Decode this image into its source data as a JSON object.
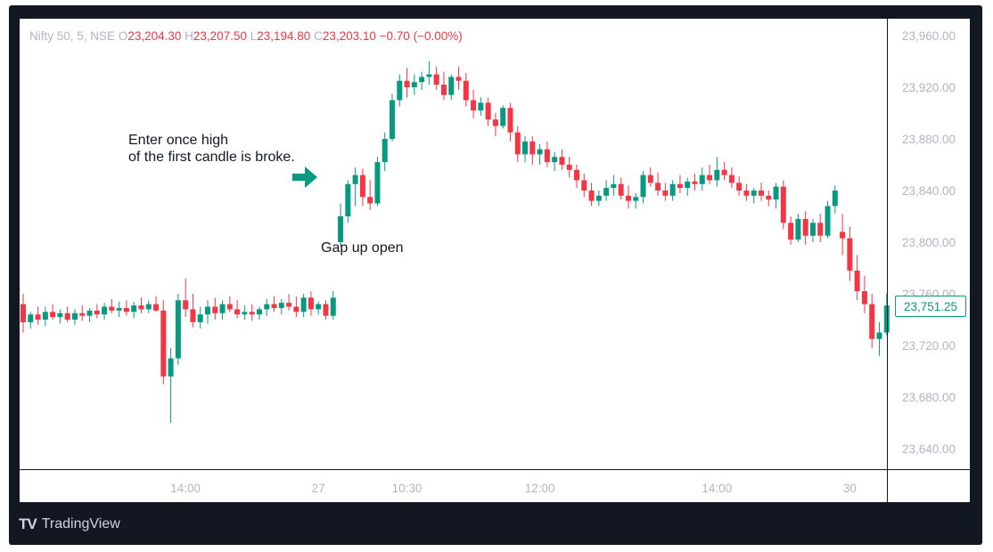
{
  "legend": {
    "symbol": "Nifty 50, 5, NSE",
    "open_label": "O",
    "open": "23,204.30",
    "high_label": "H",
    "high": "23,207.50",
    "low_label": "L",
    "low": "23,194.80",
    "close_label": "C",
    "close": "23,203.10",
    "change": "−0.70 (−0.00%)"
  },
  "annotations": {
    "entry_note_line1": "Enter once high",
    "entry_note_line2": "of the first candle is broke.",
    "gap_note": "Gap up open"
  },
  "last_price": "23,751.25",
  "watermark": "TradingView",
  "colors": {
    "up": "#089981",
    "down": "#f23645",
    "arrow": "#089981"
  },
  "chart_data": {
    "type": "candlestick",
    "y_ticks": [
      23640,
      23680,
      23720,
      23760,
      23800,
      23840,
      23880,
      23920,
      23960
    ],
    "y_tick_labels": [
      "23,640.00",
      "23,680.00",
      "23,720.00",
      "23,760.00",
      "23,800.00",
      "23,840.00",
      "23,880.00",
      "23,920.00",
      "23,960.00"
    ],
    "ylim": [
      23625,
      23975
    ],
    "x_tick_labels": [
      {
        "index": 22,
        "label": "14:00"
      },
      {
        "index": 40,
        "label": "27"
      },
      {
        "index": 52,
        "label": "10:30"
      },
      {
        "index": 70,
        "label": "12:00"
      },
      {
        "index": 94,
        "label": "14:00"
      },
      {
        "index": 112,
        "label": "30"
      }
    ],
    "grid": false,
    "candles": [
      [
        23752,
        23760,
        23730,
        23738
      ],
      [
        23738,
        23746,
        23733,
        23744
      ],
      [
        23744,
        23750,
        23736,
        23740
      ],
      [
        23740,
        23750,
        23735,
        23746
      ],
      [
        23746,
        23752,
        23740,
        23742
      ],
      [
        23742,
        23748,
        23737,
        23745
      ],
      [
        23745,
        23750,
        23738,
        23740
      ],
      [
        23740,
        23748,
        23736,
        23745
      ],
      [
        23745,
        23751,
        23739,
        23743
      ],
      [
        23743,
        23749,
        23738,
        23747
      ],
      [
        23747,
        23752,
        23741,
        23744
      ],
      [
        23744,
        23753,
        23740,
        23750
      ],
      [
        23750,
        23756,
        23745,
        23747
      ],
      [
        23747,
        23754,
        23742,
        23749
      ],
      [
        23749,
        23755,
        23743,
        23746
      ],
      [
        23746,
        23754,
        23741,
        23751
      ],
      [
        23751,
        23757,
        23745,
        23748
      ],
      [
        23748,
        23755,
        23745,
        23752
      ],
      [
        23752,
        23758,
        23746,
        23747
      ],
      [
        23747,
        23755,
        23690,
        23696
      ],
      [
        23696,
        23718,
        23660,
        23710
      ],
      [
        23710,
        23760,
        23705,
        23755
      ],
      [
        23755,
        23772,
        23742,
        23748
      ],
      [
        23748,
        23760,
        23734,
        23738
      ],
      [
        23738,
        23750,
        23733,
        23744
      ],
      [
        23744,
        23755,
        23737,
        23750
      ],
      [
        23750,
        23757,
        23740,
        23745
      ],
      [
        23745,
        23755,
        23740,
        23752
      ],
      [
        23752,
        23758,
        23746,
        23748
      ],
      [
        23748,
        23755,
        23741,
        23744
      ],
      [
        23744,
        23751,
        23740,
        23746
      ],
      [
        23746,
        23752,
        23739,
        23744
      ],
      [
        23744,
        23750,
        23740,
        23748
      ],
      [
        23748,
        23756,
        23743,
        23752
      ],
      [
        23752,
        23758,
        23746,
        23749
      ],
      [
        23749,
        23756,
        23744,
        23753
      ],
      [
        23753,
        23760,
        23747,
        23750
      ],
      [
        23750,
        23758,
        23742,
        23746
      ],
      [
        23746,
        23760,
        23742,
        23757
      ],
      [
        23757,
        23762,
        23743,
        23748
      ],
      [
        23748,
        23754,
        23744,
        23752
      ],
      [
        23752,
        23755,
        23740,
        23743
      ],
      [
        23743,
        23762,
        23740,
        23757
      ],
      [
        23800,
        23830,
        23797,
        23820
      ],
      [
        23820,
        23848,
        23815,
        23845
      ],
      [
        23845,
        23858,
        23828,
        23852
      ],
      [
        23852,
        23857,
        23828,
        23835
      ],
      [
        23835,
        23848,
        23825,
        23830
      ],
      [
        23830,
        23866,
        23828,
        23862
      ],
      [
        23862,
        23885,
        23855,
        23880
      ],
      [
        23880,
        23915,
        23878,
        23910
      ],
      [
        23910,
        23930,
        23905,
        23925
      ],
      [
        23925,
        23935,
        23912,
        23920
      ],
      [
        23920,
        23930,
        23914,
        23924
      ],
      [
        23924,
        23932,
        23918,
        23928
      ],
      [
        23928,
        23940,
        23922,
        23930
      ],
      [
        23930,
        23936,
        23918,
        23922
      ],
      [
        23922,
        23932,
        23910,
        23914
      ],
      [
        23914,
        23930,
        23910,
        23928
      ],
      [
        23928,
        23936,
        23918,
        23925
      ],
      [
        23925,
        23931,
        23905,
        23910
      ],
      [
        23910,
        23918,
        23896,
        23902
      ],
      [
        23902,
        23912,
        23898,
        23908
      ],
      [
        23908,
        23912,
        23890,
        23895
      ],
      [
        23895,
        23900,
        23882,
        23890
      ],
      [
        23890,
        23906,
        23888,
        23904
      ],
      [
        23904,
        23908,
        23878,
        23885
      ],
      [
        23885,
        23890,
        23862,
        23868
      ],
      [
        23868,
        23882,
        23862,
        23878
      ],
      [
        23878,
        23882,
        23860,
        23868
      ],
      [
        23868,
        23876,
        23860,
        23872
      ],
      [
        23872,
        23878,
        23858,
        23862
      ],
      [
        23862,
        23870,
        23855,
        23866
      ],
      [
        23866,
        23872,
        23856,
        23860
      ],
      [
        23860,
        23866,
        23850,
        23856
      ],
      [
        23856,
        23860,
        23842,
        23848
      ],
      [
        23848,
        23853,
        23835,
        23840
      ],
      [
        23840,
        23846,
        23828,
        23832
      ],
      [
        23832,
        23840,
        23828,
        23836
      ],
      [
        23836,
        23848,
        23832,
        23842
      ],
      [
        23842,
        23852,
        23836,
        23845
      ],
      [
        23845,
        23850,
        23833,
        23836
      ],
      [
        23836,
        23844,
        23826,
        23832
      ],
      [
        23832,
        23838,
        23826,
        23835
      ],
      [
        23835,
        23855,
        23830,
        23852
      ],
      [
        23852,
        23858,
        23843,
        23846
      ],
      [
        23846,
        23854,
        23836,
        23840
      ],
      [
        23840,
        23846,
        23832,
        23836
      ],
      [
        23836,
        23848,
        23832,
        23845
      ],
      [
        23845,
        23852,
        23838,
        23842
      ],
      [
        23842,
        23850,
        23836,
        23847
      ],
      [
        23847,
        23853,
        23840,
        23845
      ],
      [
        23845,
        23858,
        23840,
        23852
      ],
      [
        23852,
        23860,
        23845,
        23848
      ],
      [
        23848,
        23866,
        23843,
        23856
      ],
      [
        23856,
        23862,
        23848,
        23852
      ],
      [
        23852,
        23858,
        23842,
        23846
      ],
      [
        23846,
        23851,
        23836,
        23840
      ],
      [
        23840,
        23845,
        23832,
        23836
      ],
      [
        23836,
        23842,
        23830,
        23840
      ],
      [
        23840,
        23846,
        23832,
        23836
      ],
      [
        23836,
        23840,
        23828,
        23833
      ],
      [
        23833,
        23846,
        23826,
        23843
      ],
      [
        23843,
        23848,
        23810,
        23815
      ],
      [
        23815,
        23820,
        23798,
        23802
      ],
      [
        23802,
        23822,
        23800,
        23818
      ],
      [
        23818,
        23824,
        23798,
        23805
      ],
      [
        23805,
        23818,
        23800,
        23815
      ],
      [
        23815,
        23822,
        23800,
        23805
      ],
      [
        23805,
        23832,
        23803,
        23828
      ],
      [
        23828,
        23844,
        23822,
        23840
      ],
      [
        23808,
        23822,
        23790,
        23803
      ],
      [
        23803,
        23812,
        23770,
        23778
      ],
      [
        23778,
        23790,
        23755,
        23762
      ],
      [
        23762,
        23774,
        23745,
        23752
      ],
      [
        23752,
        23760,
        23718,
        23725
      ],
      [
        23725,
        23738,
        23712,
        23730
      ],
      [
        23730,
        23760,
        23728,
        23751
      ]
    ]
  }
}
